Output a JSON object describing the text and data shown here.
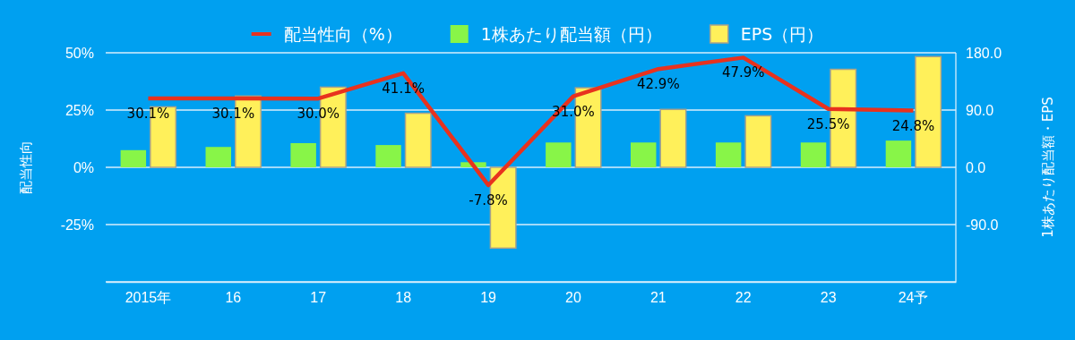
{
  "chart_data": {
    "type": "bar",
    "categories": [
      "2015年",
      "16",
      "17",
      "18",
      "19",
      "20",
      "21",
      "22",
      "23",
      "24予"
    ],
    "series": [
      {
        "name": "配当性向（%）",
        "type": "line",
        "color": "#e8321e",
        "values": [
          30.1,
          30.1,
          30.0,
          41.1,
          -7.8,
          31.0,
          42.9,
          47.9,
          25.5,
          24.8
        ],
        "value_labels": [
          "30.1%",
          "30.1%",
          "30.0%",
          "41.1%",
          "-7.8%",
          "31.0%",
          "42.9%",
          "47.9%",
          "25.5%",
          "24.8%"
        ]
      },
      {
        "name": "1株あたり配当額（円）",
        "axis": "y2",
        "color": "#88f548",
        "values": [
          27,
          32,
          38,
          35,
          8,
          39,
          39,
          39,
          39,
          42
        ]
      },
      {
        "name": "EPS（円）",
        "axis": "y2",
        "color": "#fff05a",
        "values": [
          95,
          112,
          126,
          85,
          -127,
          125,
          91,
          81,
          154,
          174
        ]
      }
    ],
    "ylabel": "配当性向",
    "y2label": "1株あたり配当額・EPS",
    "ylim": [
      -50,
      50
    ],
    "yticks": [
      {
        "value": -50,
        "label": null
      },
      {
        "value": -25,
        "label": "-25%"
      },
      {
        "value": 0,
        "label": "0%"
      },
      {
        "value": 25,
        "label": "25%"
      },
      {
        "value": 50,
        "label": "50%"
      }
    ],
    "y2lim": [
      -180,
      180
    ],
    "y2ticks": [
      {
        "value": -180,
        "label": null
      },
      {
        "value": -90,
        "label": "-90.0"
      },
      {
        "value": 0,
        "label": "0.0"
      },
      {
        "value": 90,
        "label": "90.0"
      },
      {
        "value": 180,
        "label": "180.0"
      }
    ],
    "grid": "y",
    "legend": "top"
  }
}
